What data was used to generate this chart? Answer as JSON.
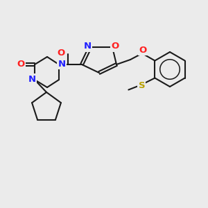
{
  "background_color": "#ebebeb",
  "bond_color": "#1a1a1a",
  "atom_colors": {
    "N": "#2020ff",
    "O": "#ff2020",
    "S": "#b8a000",
    "C": "#1a1a1a"
  },
  "figsize": [
    3.0,
    3.0
  ],
  "dpi": 100,
  "bond_lw": 1.5,
  "font_size": 9.5
}
